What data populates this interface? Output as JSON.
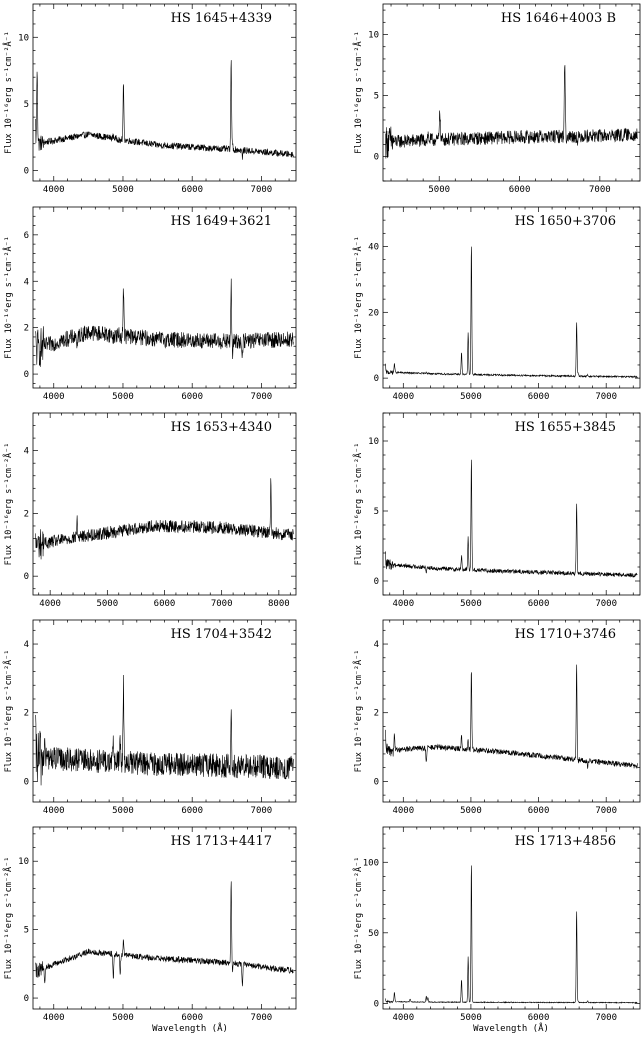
{
  "figure": {
    "xlabel": "Wavelength (Å)",
    "ylabel": "Flux 10⁻¹⁶erg s⁻¹cm⁻²Å⁻¹"
  },
  "chart_data": [
    {
      "type": "line",
      "title": "HS 1645+4339",
      "xlim": [
        3700,
        7500
      ],
      "ylim": [
        -0.8,
        12.5
      ],
      "xticks": [
        4000,
        5000,
        6000,
        7000
      ],
      "yticks": [
        0,
        5,
        10
      ],
      "continuum": [
        [
          3750,
          2.0
        ],
        [
          4500,
          2.7
        ],
        [
          5500,
          1.9
        ],
        [
          6500,
          1.6
        ],
        [
          7450,
          1.2
        ]
      ],
      "noise": 0.25,
      "lines": [
        [
          3727,
          10.5
        ],
        [
          3760,
          7.8
        ],
        [
          4861,
          2.6
        ],
        [
          4959,
          2.1
        ],
        [
          5007,
          6.5
        ],
        [
          6563,
          8.2
        ],
        [
          6584,
          2.0
        ],
        [
          6725,
          1.0
        ]
      ]
    },
    {
      "type": "line",
      "title": "HS 1646+4003 B",
      "xlim": [
        4300,
        7500
      ],
      "ylim": [
        -2.0,
        12.5
      ],
      "xticks": [
        5000,
        6000,
        7000
      ],
      "yticks": [
        0,
        5,
        10
      ],
      "continuum": [
        [
          4350,
          1.2
        ],
        [
          5000,
          1.4
        ],
        [
          6000,
          1.6
        ],
        [
          7000,
          1.7
        ],
        [
          7450,
          1.8
        ]
      ],
      "noise": 0.55,
      "lines": [
        [
          4861,
          1.8
        ],
        [
          4959,
          1.2
        ],
        [
          5007,
          4.0
        ],
        [
          6563,
          7.8
        ],
        [
          6584,
          1.5
        ],
        [
          6725,
          1.0
        ]
      ]
    },
    {
      "type": "line",
      "title": "HS 1649+3621",
      "xlim": [
        3700,
        7500
      ],
      "ylim": [
        -0.6,
        7.2
      ],
      "xticks": [
        4000,
        5000,
        6000,
        7000
      ],
      "yticks": [
        0,
        2,
        4,
        6
      ],
      "continuum": [
        [
          3750,
          1.1
        ],
        [
          4500,
          1.8
        ],
        [
          5500,
          1.5
        ],
        [
          6500,
          1.4
        ],
        [
          7450,
          1.5
        ]
      ],
      "noise": 0.35,
      "lines": [
        [
          3727,
          2.4
        ],
        [
          4340,
          1.0
        ],
        [
          4861,
          1.5
        ],
        [
          4959,
          1.6
        ],
        [
          5007,
          3.8
        ],
        [
          6563,
          3.9
        ],
        [
          6584,
          0.8
        ],
        [
          6725,
          0.6
        ]
      ]
    },
    {
      "type": "line",
      "title": "HS 1650+3706",
      "xlim": [
        3700,
        7500
      ],
      "ylim": [
        -3.0,
        52.0
      ],
      "xticks": [
        4000,
        5000,
        6000,
        7000
      ],
      "yticks": [
        0,
        20,
        40
      ],
      "continuum": [
        [
          3750,
          1.8
        ],
        [
          4500,
          1.3
        ],
        [
          5500,
          0.9
        ],
        [
          6500,
          0.6
        ],
        [
          7450,
          0.4
        ]
      ],
      "noise": 0.25,
      "lines": [
        [
          3727,
          13.5
        ],
        [
          3869,
          4.5
        ],
        [
          4340,
          2.0
        ],
        [
          4861,
          8.0
        ],
        [
          4959,
          14.0
        ],
        [
          5007,
          41.0
        ],
        [
          6563,
          17.0
        ],
        [
          6584,
          1.5
        ],
        [
          6725,
          1.0
        ]
      ]
    },
    {
      "type": "line",
      "title": "HS 1653+4340",
      "xlim": [
        3700,
        8300
      ],
      "ylim": [
        -0.6,
        5.2
      ],
      "xticks": [
        4000,
        5000,
        6000,
        7000,
        8000
      ],
      "yticks": [
        0,
        2,
        4
      ],
      "continuum": [
        [
          3750,
          1.0
        ],
        [
          4500,
          1.25
        ],
        [
          5800,
          1.6
        ],
        [
          7000,
          1.55
        ],
        [
          8250,
          1.3
        ]
      ],
      "noise": 0.2,
      "lines": [
        [
          4470,
          1.9
        ],
        [
          5990,
          1.5
        ],
        [
          7860,
          3.0
        ]
      ]
    },
    {
      "type": "line",
      "title": "HS 1655+3845",
      "xlim": [
        3700,
        7500
      ],
      "ylim": [
        -1.0,
        12.0
      ],
      "xticks": [
        4000,
        5000,
        6000,
        7000
      ],
      "yticks": [
        0,
        5,
        10
      ],
      "continuum": [
        [
          3750,
          1.2
        ],
        [
          4500,
          0.9
        ],
        [
          5500,
          0.7
        ],
        [
          6500,
          0.55
        ],
        [
          7450,
          0.4
        ]
      ],
      "noise": 0.15,
      "lines": [
        [
          3727,
          4.5
        ],
        [
          3869,
          1.2
        ],
        [
          4340,
          0.7
        ],
        [
          4861,
          1.8
        ],
        [
          4959,
          3.2
        ],
        [
          5007,
          8.8
        ],
        [
          6563,
          5.5
        ],
        [
          6725,
          0.5
        ]
      ]
    },
    {
      "type": "line",
      "title": "HS 1704+3542",
      "xlim": [
        3700,
        7500
      ],
      "ylim": [
        -0.6,
        4.7
      ],
      "xticks": [
        4000,
        5000,
        6000,
        7000
      ],
      "yticks": [
        0,
        2,
        4
      ],
      "continuum": [
        [
          3750,
          0.7
        ],
        [
          4500,
          0.6
        ],
        [
          5500,
          0.5
        ],
        [
          6500,
          0.45
        ],
        [
          7450,
          0.4
        ]
      ],
      "noise": 0.35,
      "lines": [
        [
          3727,
          3.2
        ],
        [
          3869,
          1.1
        ],
        [
          4861,
          1.2
        ],
        [
          4959,
          1.3
        ],
        [
          5007,
          2.9
        ],
        [
          6563,
          1.9
        ],
        [
          6725,
          0.4
        ]
      ]
    },
    {
      "type": "line",
      "title": "HS 1710+3746",
      "xlim": [
        3700,
        7500
      ],
      "ylim": [
        -0.6,
        4.7
      ],
      "xticks": [
        4000,
        5000,
        6000,
        7000
      ],
      "yticks": [
        0,
        2,
        4
      ],
      "continuum": [
        [
          3750,
          0.9
        ],
        [
          4500,
          1.0
        ],
        [
          5500,
          0.85
        ],
        [
          6500,
          0.65
        ],
        [
          7450,
          0.45
        ]
      ],
      "noise": 0.08,
      "lines": [
        [
          3727,
          3.1
        ],
        [
          3869,
          1.4
        ],
        [
          4340,
          0.5
        ],
        [
          4861,
          1.4
        ],
        [
          4959,
          1.2
        ],
        [
          5007,
          3.3
        ],
        [
          6563,
          3.4
        ],
        [
          6584,
          0.6
        ],
        [
          6725,
          0.4
        ]
      ]
    },
    {
      "type": "line",
      "title": "HS 1713+4417",
      "xlim": [
        3700,
        7500
      ],
      "ylim": [
        -0.8,
        12.5
      ],
      "xticks": [
        4000,
        5000,
        6000,
        7000
      ],
      "yticks": [
        0,
        5,
        10
      ],
      "continuum": [
        [
          3750,
          2.0
        ],
        [
          4500,
          3.4
        ],
        [
          5500,
          2.9
        ],
        [
          6500,
          2.6
        ],
        [
          7450,
          2.0
        ]
      ],
      "noise": 0.22,
      "lines": [
        [
          3727,
          8.0
        ],
        [
          3869,
          1.0
        ],
        [
          4861,
          1.3
        ],
        [
          4959,
          1.6
        ],
        [
          5007,
          4.3
        ],
        [
          6563,
          8.5
        ],
        [
          6584,
          2.0
        ],
        [
          6725,
          1.0
        ]
      ]
    },
    {
      "type": "line",
      "title": "HS 1713+4856",
      "xlim": [
        3700,
        7500
      ],
      "ylim": [
        -4.0,
        125.0
      ],
      "xticks": [
        4000,
        5000,
        6000,
        7000
      ],
      "yticks": [
        0,
        50,
        100
      ],
      "continuum": [
        [
          3750,
          1.2
        ],
        [
          4500,
          0.9
        ],
        [
          5500,
          0.7
        ],
        [
          6500,
          0.6
        ],
        [
          7450,
          0.5
        ]
      ],
      "noise": 0.3,
      "lines": [
        [
          3727,
          17.0
        ],
        [
          3869,
          8.0
        ],
        [
          4101,
          3.0
        ],
        [
          4340,
          5.0
        ],
        [
          4363,
          4.0
        ],
        [
          4861,
          17.0
        ],
        [
          4959,
          33.0
        ],
        [
          5007,
          100.0
        ],
        [
          6563,
          66.0
        ],
        [
          6584,
          1.5
        ],
        [
          6725,
          2.0
        ]
      ]
    }
  ]
}
